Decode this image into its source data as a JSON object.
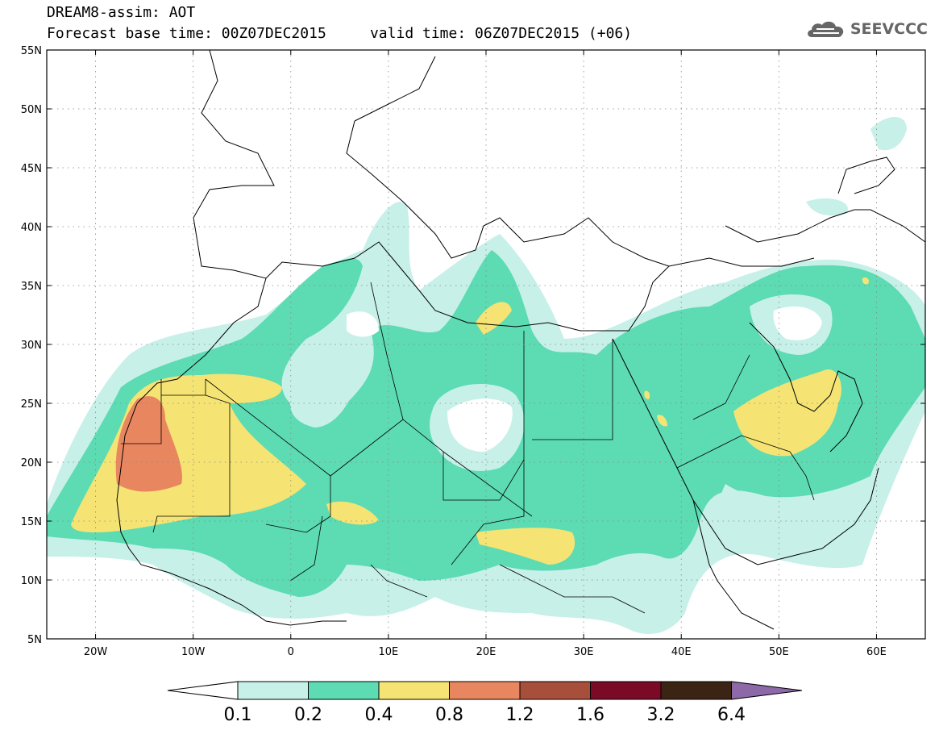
{
  "header": {
    "model_line": "DREAM8-assim: AOT",
    "time_line": "Forecast base time: 00Z07DEC2015     valid time: 06Z07DEC2015 (+06)"
  },
  "logo": {
    "text": "SEEVCCC",
    "icon": "cloud-icon"
  },
  "map": {
    "lon_range": [
      -25,
      65
    ],
    "lat_range": [
      5,
      55
    ],
    "lon_ticks": [
      {
        "value": -20,
        "label": "20W"
      },
      {
        "value": -10,
        "label": "10W"
      },
      {
        "value": 0,
        "label": "0"
      },
      {
        "value": 10,
        "label": "10E"
      },
      {
        "value": 20,
        "label": "20E"
      },
      {
        "value": 30,
        "label": "30E"
      },
      {
        "value": 40,
        "label": "40E"
      },
      {
        "value": 50,
        "label": "50E"
      },
      {
        "value": 60,
        "label": "60E"
      }
    ],
    "lat_ticks": [
      {
        "value": 55,
        "label": "55N"
      },
      {
        "value": 50,
        "label": "50N"
      },
      {
        "value": 45,
        "label": "45N"
      },
      {
        "value": 40,
        "label": "40N"
      },
      {
        "value": 35,
        "label": "35N"
      },
      {
        "value": 30,
        "label": "30N"
      },
      {
        "value": 25,
        "label": "25N"
      },
      {
        "value": 20,
        "label": "20N"
      },
      {
        "value": 15,
        "label": "15N"
      },
      {
        "value": 10,
        "label": "10N"
      },
      {
        "value": 5,
        "label": "5N"
      }
    ],
    "grid": "dotted"
  },
  "colorbar": {
    "thresholds": [
      "0.1",
      "0.2",
      "0.4",
      "0.8",
      "1.2",
      "1.6",
      "3.2",
      "6.4"
    ],
    "colors": [
      "#c7f0e8",
      "#5ddbb3",
      "#f5e474",
      "#e8875f",
      "#a84f3c",
      "#7a0a25",
      "#3c2414"
    ],
    "under_color": "#ffffff",
    "over_color": "#8e69a8"
  }
}
